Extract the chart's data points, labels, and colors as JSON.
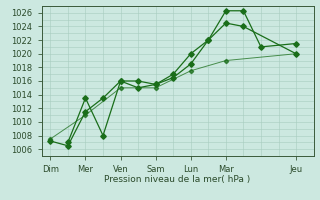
{
  "xlabel": "Pression niveau de la mer( hPa )",
  "bg_color": "#cce8e0",
  "grid_color": "#a8ccbf",
  "line_color": "#1a6e1a",
  "ylim": [
    1005,
    1027
  ],
  "yticks": [
    1006,
    1008,
    1010,
    1012,
    1014,
    1016,
    1018,
    1020,
    1022,
    1024,
    1026
  ],
  "x_labels": [
    "Dim",
    "Mer",
    "Ven",
    "Sam",
    "Lun",
    "Mar",
    "Jeu"
  ],
  "x_tick_pos": [
    0,
    2,
    4,
    6,
    8,
    10,
    14
  ],
  "xlim": [
    -0.5,
    15.0
  ],
  "line1_x": [
    0,
    1,
    2,
    3,
    4,
    5,
    6,
    7,
    8,
    9,
    10,
    11,
    12,
    14
  ],
  "line1_y": [
    1007.2,
    1006.5,
    1011.5,
    1013.5,
    1016,
    1016,
    1015.5,
    1016.5,
    1018.5,
    1022,
    1026.3,
    1026.3,
    1021,
    1021.5
  ],
  "line2_x": [
    1,
    2,
    3,
    4,
    5,
    6,
    7,
    8,
    9,
    10,
    11,
    14
  ],
  "line2_y": [
    1007,
    1013.5,
    1008,
    1016,
    1015,
    1015.5,
    1017,
    1020,
    1022,
    1024.5,
    1024,
    1020
  ],
  "line3_x": [
    0,
    2,
    4,
    6,
    8,
    10,
    14
  ],
  "line3_y": [
    1007.5,
    1011,
    1015,
    1015,
    1017.5,
    1019,
    1020
  ]
}
